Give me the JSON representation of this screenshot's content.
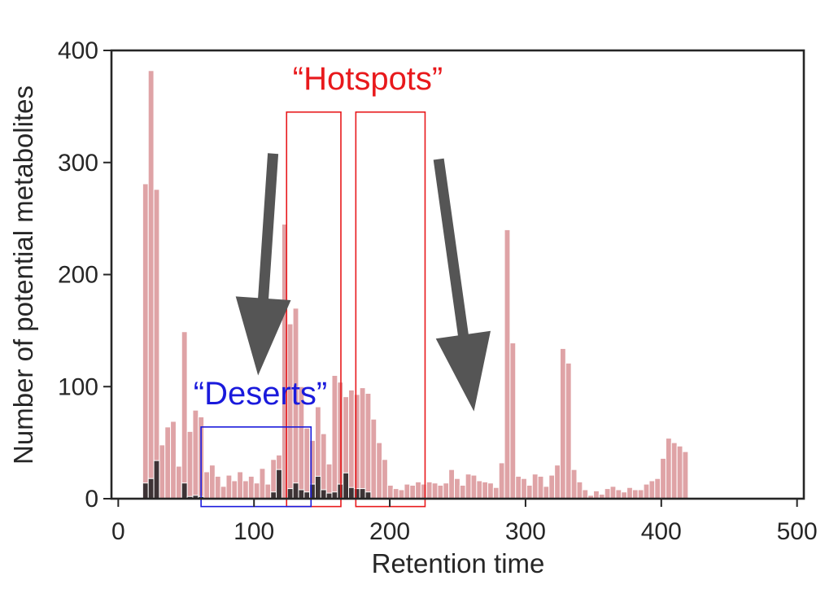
{
  "chart_data": {
    "type": "bar",
    "title": "",
    "xlabel": "Retention time",
    "ylabel": "Number of potential metabolites",
    "xlim": [
      -5,
      505
    ],
    "ylim": [
      0,
      400
    ],
    "xticks": [
      0,
      100,
      200,
      300,
      400,
      500
    ],
    "yticks": [
      0,
      100,
      200,
      300,
      400
    ],
    "grid": false,
    "bin_start": 18,
    "bin_width": 4.1,
    "colors": {
      "all": "#dfa3a6",
      "subset": "#3d3335",
      "hotspot_box": "#e8191c",
      "desert_box": "#1a1adc",
      "arrow": "#555555"
    },
    "series": [
      {
        "values": [
          281,
          382,
          276,
          48,
          64,
          69,
          29,
          149,
          60,
          79,
          73,
          24,
          30,
          20,
          11,
          21,
          16,
          24,
          16,
          20,
          14,
          27,
          13,
          35,
          39,
          245,
          156,
          170,
          100,
          63,
          52,
          82,
          58,
          31,
          110,
          104,
          91,
          97,
          93,
          99,
          94,
          71,
          50,
          35,
          12,
          9,
          8,
          13,
          12,
          15,
          13,
          15,
          14,
          12,
          14,
          26,
          18,
          12,
          22,
          21,
          16,
          15,
          14,
          10,
          32,
          240,
          139,
          20,
          18,
          12,
          22,
          20,
          11,
          21,
          30,
          134,
          121,
          26,
          15,
          8,
          3,
          7,
          4,
          9,
          11,
          8,
          6,
          10,
          8,
          8,
          13,
          16,
          18,
          36,
          54,
          50,
          47,
          42
        ]
      },
      {
        "values": [
          14,
          18,
          34,
          0,
          0,
          0,
          0,
          14,
          2,
          3,
          2,
          0,
          0,
          0,
          0,
          0,
          0,
          0,
          0,
          0,
          0,
          0,
          0,
          6,
          26,
          0,
          9,
          14,
          8,
          6,
          13,
          20,
          8,
          5,
          6,
          13,
          23,
          10,
          9,
          9,
          6,
          0,
          0,
          0,
          0,
          0,
          0,
          0,
          0,
          0,
          0,
          0,
          0,
          0,
          0,
          0,
          0,
          0,
          0,
          0,
          0,
          0,
          0,
          0,
          0,
          0,
          0,
          0,
          0,
          0,
          0,
          0,
          0,
          0,
          0,
          0,
          0,
          0,
          0,
          0,
          0,
          0,
          0,
          0,
          0,
          0,
          0,
          0,
          0,
          0,
          0,
          0,
          0,
          0,
          0,
          0,
          0,
          0
        ]
      }
    ],
    "annotations": [
      {
        "label": "“Hotspots”",
        "type": "boxes",
        "boxes": [
          [
            124,
            164,
            -7,
            345
          ],
          [
            175,
            226,
            -7,
            345
          ]
        ]
      },
      {
        "label": "“Deserts”",
        "type": "boxes",
        "boxes": [
          [
            61,
            142,
            -7,
            64
          ]
        ]
      }
    ],
    "arrows": [
      {
        "from": [
          114,
          308
        ],
        "to": [
          103,
          110
        ]
      },
      {
        "from": [
          236,
          303
        ],
        "to": [
          262,
          78
        ]
      }
    ]
  }
}
